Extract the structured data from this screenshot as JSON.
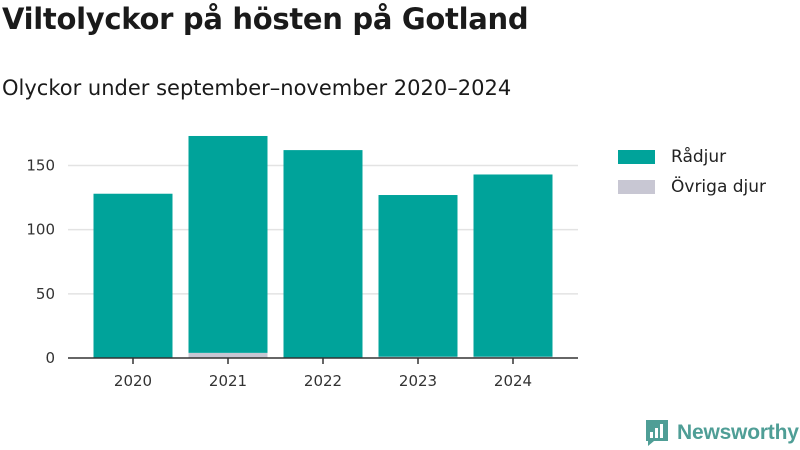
{
  "title": "Viltolyckor på hösten på Gotland",
  "subtitle": "Olyckor under september–november 2020–2024",
  "brand": {
    "name": "Newsworthy",
    "icon": "newsworthy-logo-icon",
    "color": "#4f9e96"
  },
  "chart_data": {
    "type": "bar",
    "stacked": true,
    "categories": [
      "2020",
      "2021",
      "2022",
      "2023",
      "2024"
    ],
    "series": [
      {
        "name": "Övriga djur",
        "color": "#c8c7d3",
        "values": [
          0,
          4,
          0,
          1,
          1
        ]
      },
      {
        "name": "Rådjur",
        "color": "#00a39a",
        "values": [
          128,
          169,
          162,
          126,
          142
        ]
      }
    ],
    "yticks": [
      0,
      50,
      100,
      150
    ],
    "ylim": [
      0,
      180
    ],
    "grid": true,
    "legend_position": "top-right",
    "xlabel": "",
    "ylabel": ""
  }
}
